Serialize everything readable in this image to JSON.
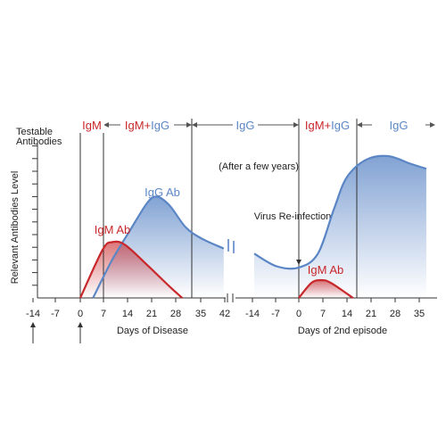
{
  "chart_data": {
    "type": "line",
    "title": "",
    "ylabel": "Relevant Antibodies Level",
    "testable_label_line1": "Testable",
    "testable_label_line2": "Antibodies",
    "xlabel_left": "Days of Disease",
    "xlabel_right": "Days of 2nd episode",
    "x_ticks": [
      "-14",
      "-7",
      "0",
      "7",
      "14",
      "21",
      "28",
      "35",
      "42",
      "-14",
      "-7",
      "0",
      "7",
      "14",
      "21",
      "28",
      "35"
    ],
    "phases": [
      {
        "id": "p1",
        "parts": [
          {
            "text": "IgM",
            "color": "#c8282b"
          }
        ]
      },
      {
        "id": "p2",
        "parts": [
          {
            "text": "IgM",
            "color": "#c8282b"
          },
          {
            "text": "+",
            "color": "#c8282b"
          },
          {
            "text": "IgG",
            "color": "#5b86c6"
          }
        ]
      },
      {
        "id": "p3",
        "parts": [
          {
            "text": "IgG",
            "color": "#5b86c6"
          }
        ]
      },
      {
        "id": "p4",
        "parts": [
          {
            "text": "IgM",
            "color": "#c8282b"
          },
          {
            "text": "+",
            "color": "#c8282b"
          },
          {
            "text": "IgG",
            "color": "#5b86c6"
          }
        ]
      },
      {
        "id": "p5",
        "parts": [
          {
            "text": "IgG",
            "color": "#5b86c6"
          }
        ]
      }
    ],
    "annotations": {
      "after_years": "(After a few years)",
      "reinfection": "Virus Re-infection"
    },
    "series": [
      {
        "name": "IgG Ab",
        "color": "#5b86c6",
        "points": [
          {
            "episode": 1,
            "day": 4,
            "level": 0
          },
          {
            "episode": 1,
            "day": 10,
            "level": 3
          },
          {
            "episode": 1,
            "day": 16,
            "level": 5.5
          },
          {
            "episode": 1,
            "day": 21,
            "level": 7.5
          },
          {
            "episode": 1,
            "day": 24,
            "level": 8
          },
          {
            "episode": 1,
            "day": 28,
            "level": 7.3
          },
          {
            "episode": 1,
            "day": 33,
            "level": 5.6
          },
          {
            "episode": 1,
            "day": 38,
            "level": 4.7
          },
          {
            "episode": 1,
            "day": 45,
            "level": 3.9
          },
          {
            "episode": 2,
            "day": -14,
            "level": 3.5
          },
          {
            "episode": 2,
            "day": -7,
            "level": 2.5
          },
          {
            "episode": 2,
            "day": 0,
            "level": 2.4
          },
          {
            "episode": 2,
            "day": 6,
            "level": 3.5
          },
          {
            "episode": 2,
            "day": 11,
            "level": 7
          },
          {
            "episode": 2,
            "day": 15,
            "level": 9.5
          },
          {
            "episode": 2,
            "day": 21,
            "level": 10.9
          },
          {
            "episode": 2,
            "day": 28,
            "level": 11.2
          },
          {
            "episode": 2,
            "day": 35,
            "level": 10.6
          },
          {
            "episode": 2,
            "day": 40,
            "level": 10.2
          }
        ]
      },
      {
        "name": "IgM Ab",
        "color": "#c8282b",
        "points": [
          {
            "episode": 1,
            "day": 0,
            "level": 0
          },
          {
            "episode": 1,
            "day": 7,
            "level": 3.8
          },
          {
            "episode": 1,
            "day": 10,
            "level": 4.4
          },
          {
            "episode": 1,
            "day": 14,
            "level": 4.2
          },
          {
            "episode": 1,
            "day": 21,
            "level": 2.6
          },
          {
            "episode": 1,
            "day": 28,
            "level": 0.9
          },
          {
            "episode": 1,
            "day": 32,
            "level": 0
          }
        ]
      },
      {
        "name": "IgM Ab",
        "color": "#c8282b",
        "points": [
          {
            "episode": 2,
            "day": 0,
            "level": 0
          },
          {
            "episode": 2,
            "day": 4,
            "level": 1.2
          },
          {
            "episode": 2,
            "day": 7,
            "level": 1.4
          },
          {
            "episode": 2,
            "day": 10,
            "level": 1.2
          },
          {
            "episode": 2,
            "day": 17,
            "level": 0
          }
        ]
      }
    ],
    "ylim": [
      0,
      12
    ],
    "y_ticks_count": 12,
    "grid": false
  }
}
